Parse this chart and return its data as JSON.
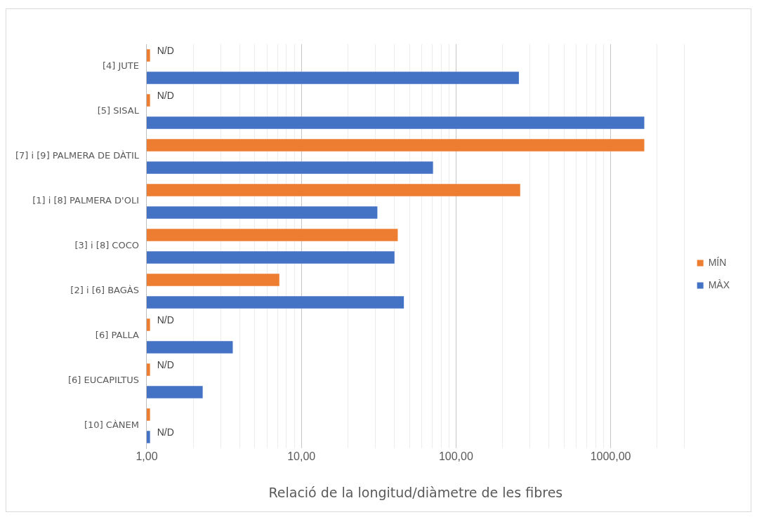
{
  "chart_data": {
    "type": "bar",
    "orientation": "horizontal",
    "log": "x",
    "xlabel": "Relació de la longitud/diàmetre de les fibres",
    "categories": [
      "[4] JUTE",
      "[5] SISAL",
      "[7] i [9] PALMERA DE DÀTIL",
      "[1] i [8] PALMERA D'OLI",
      "[3] i [8] COCO",
      "[2] i [6] BAGÀS",
      "[6] PALLA",
      "[6] EUCAPILTUS",
      "[10] CÀNEM"
    ],
    "series": [
      {
        "name": "MÍN",
        "color": "#ed7d31",
        "values": [
          1.05,
          1.05,
          1650,
          260,
          42,
          7.2,
          1.05,
          1.05,
          1.05
        ],
        "value_labels": [
          "N/D",
          "N/D",
          null,
          null,
          null,
          null,
          "N/D",
          "N/D",
          null
        ]
      },
      {
        "name": "MÀX",
        "color": "#4472c4",
        "values": [
          255,
          1650,
          71,
          31,
          40,
          46,
          3.6,
          2.3,
          1.05
        ],
        "value_labels": [
          null,
          null,
          null,
          null,
          null,
          null,
          null,
          null,
          "N/D"
        ]
      }
    ],
    "xlim": [
      1,
      3000
    ],
    "xticks": [
      {
        "value": 1,
        "label": "1,00"
      },
      {
        "value": 2,
        "label": null
      },
      {
        "value": 3,
        "label": null
      },
      {
        "value": 4,
        "label": null
      },
      {
        "value": 5,
        "label": null
      },
      {
        "value": 6,
        "label": null
      },
      {
        "value": 7,
        "label": null
      },
      {
        "value": 8,
        "label": null
      },
      {
        "value": 9,
        "label": null
      },
      {
        "value": 10,
        "label": "10,00"
      },
      {
        "value": 20,
        "label": null
      },
      {
        "value": 30,
        "label": null
      },
      {
        "value": 40,
        "label": null
      },
      {
        "value": 50,
        "label": null
      },
      {
        "value": 60,
        "label": null
      },
      {
        "value": 70,
        "label": null
      },
      {
        "value": 80,
        "label": null
      },
      {
        "value": 90,
        "label": null
      },
      {
        "value": 100,
        "label": "100,00"
      },
      {
        "value": 200,
        "label": null
      },
      {
        "value": 300,
        "label": null
      },
      {
        "value": 400,
        "label": null
      },
      {
        "value": 500,
        "label": null
      },
      {
        "value": 600,
        "label": null
      },
      {
        "value": 700,
        "label": null
      },
      {
        "value": 800,
        "label": null
      },
      {
        "value": 900,
        "label": null
      },
      {
        "value": 1000,
        "label": "1000,00"
      },
      {
        "value": 2000,
        "label": null
      },
      {
        "value": 3000,
        "label": null
      }
    ],
    "grid": "x",
    "legend": "right"
  }
}
